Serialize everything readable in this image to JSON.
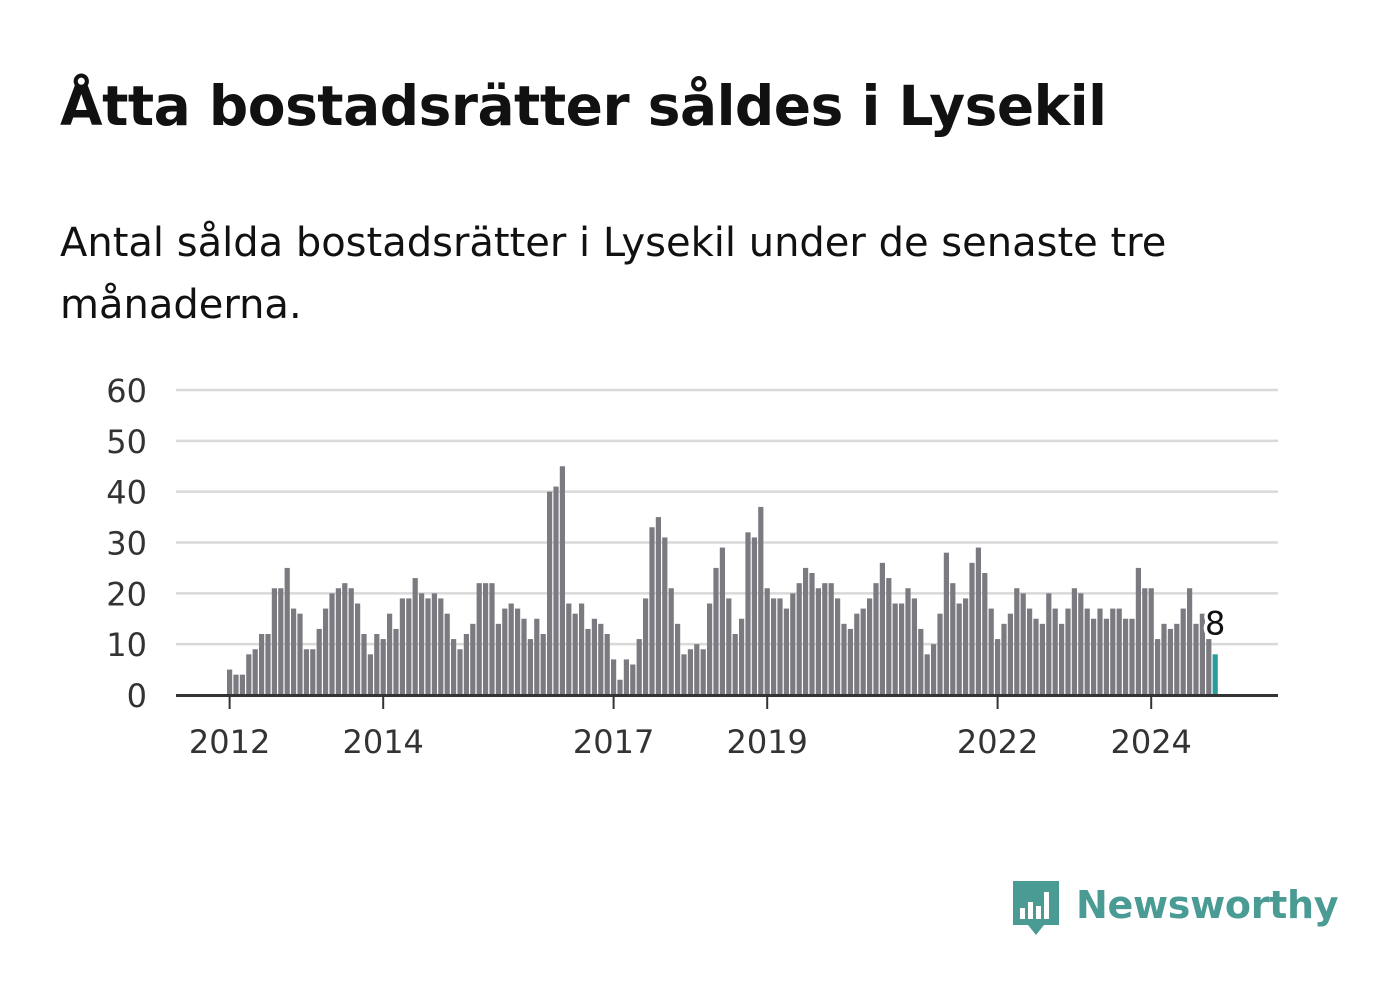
{
  "title": "Åtta bostadsrätter såldes i Lysekil",
  "subtitle": "Antal sålda bostadsrätter i Lysekil under de senaste tre månaderna.",
  "brand": {
    "name": "Newsworthy",
    "icon": "bar-chart-speech-bubble-icon",
    "color": "#4a9b94"
  },
  "chart_data": {
    "type": "bar",
    "title": "",
    "xlabel": "",
    "ylabel": "",
    "ylim": [
      0,
      60
    ],
    "yticks": [
      "0",
      "10",
      "20",
      "30",
      "40",
      "50",
      "60"
    ],
    "xticks": [
      "2012",
      "2014",
      "2017",
      "2019",
      "2022",
      "2024"
    ],
    "grid": true,
    "bar_color": "#7b7a80",
    "highlight_color": "#2a9d9a",
    "highlight_label": "8",
    "series": [
      {
        "values": [
          5,
          4,
          4,
          8,
          9,
          12,
          12,
          21,
          21,
          25,
          17,
          16,
          9,
          9,
          13,
          17,
          20,
          21,
          22,
          21,
          18,
          12,
          8,
          12,
          11,
          16,
          13,
          19,
          19,
          23,
          20,
          19,
          20,
          19,
          16,
          11,
          9,
          12,
          14,
          22,
          22,
          22,
          14,
          17,
          18,
          17,
          15,
          11,
          15,
          12,
          40,
          41,
          45,
          18,
          16,
          18,
          13,
          15,
          14,
          12,
          7,
          3,
          7,
          6,
          11,
          19,
          33,
          35,
          31,
          21,
          14,
          8,
          9,
          10,
          9,
          18,
          25,
          29,
          19,
          12,
          15,
          32,
          31,
          37,
          21,
          19,
          19,
          17,
          20,
          22,
          25,
          24,
          21,
          22,
          22,
          19,
          14,
          13,
          16,
          17,
          19,
          22,
          26,
          23,
          18,
          18,
          21,
          19,
          13,
          8,
          10,
          16,
          28,
          22,
          18,
          19,
          26,
          29,
          24,
          17,
          11,
          14,
          16,
          21,
          20,
          17,
          15,
          14,
          20,
          17,
          14,
          17,
          21,
          20,
          17,
          15,
          17,
          15,
          17,
          17,
          15,
          15,
          25,
          21,
          21,
          11,
          14,
          13,
          14,
          17,
          21,
          14,
          16,
          11,
          8
        ]
      }
    ]
  }
}
